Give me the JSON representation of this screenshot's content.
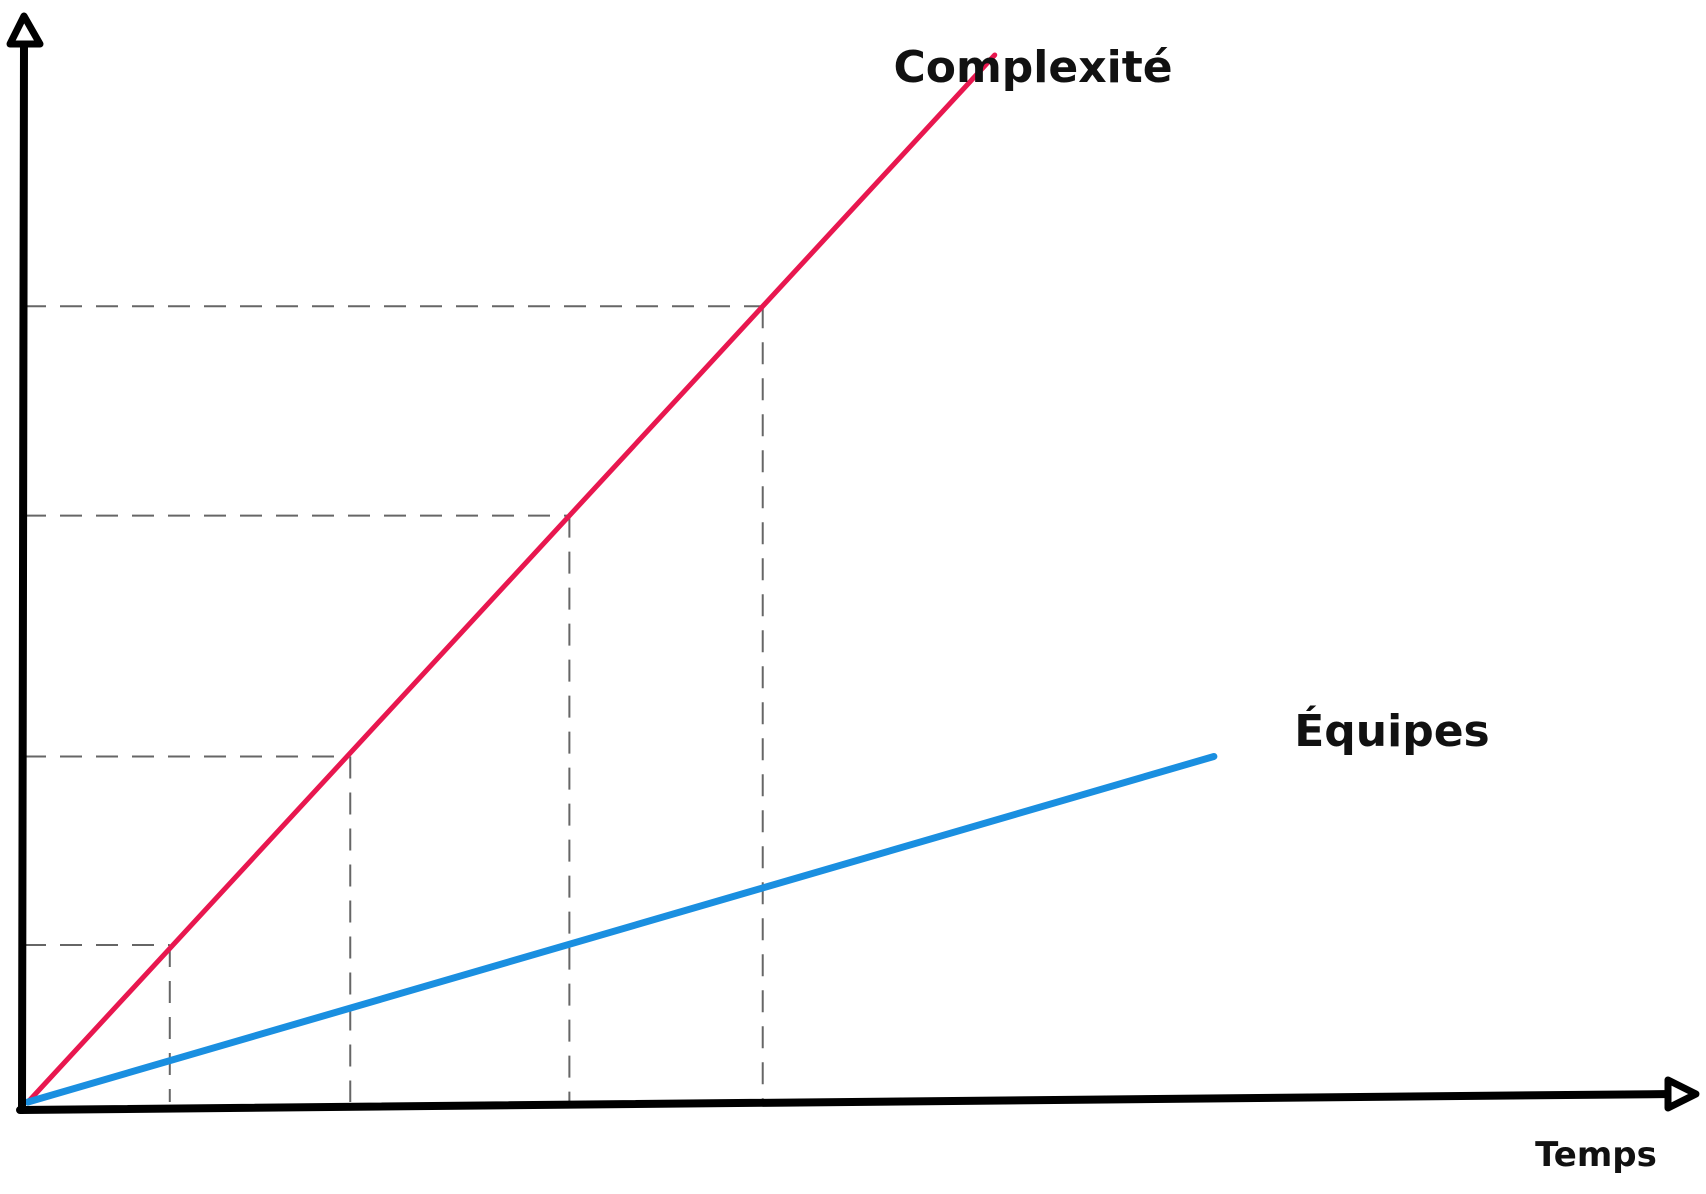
{
  "chart_data": {
    "type": "line",
    "title": "",
    "xlabel": "Temps",
    "ylabel": "",
    "xlim": [
      0,
      10
    ],
    "ylim": [
      0,
      10
    ],
    "grid": false,
    "legend": "none",
    "series": [
      {
        "name": "Complexité",
        "color": "#e8174f",
        "x": [
          0,
          7.5
        ],
        "y": [
          0,
          10
        ]
      },
      {
        "name": "Équipes",
        "color": "#1a8fe0",
        "x": [
          0,
          9.2
        ],
        "y": [
          0,
          3.3
        ]
      }
    ],
    "reference_lines": [
      {
        "x": 1.1,
        "y": 1.5
      },
      {
        "x": 2.5,
        "y": 3.3
      },
      {
        "x": 4.2,
        "y": 5.6
      },
      {
        "x": 5.7,
        "y": 7.6
      }
    ]
  }
}
